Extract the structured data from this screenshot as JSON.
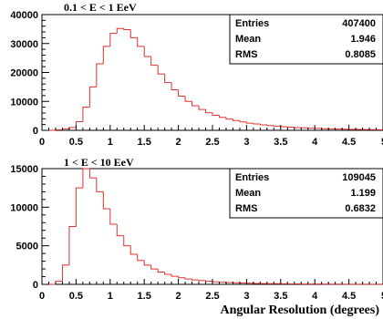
{
  "chart_data": [
    {
      "type": "histogram",
      "title": "0.1 < E < 1 EeV",
      "xlabel": "",
      "ylabel": "",
      "xlim": [
        0,
        5
      ],
      "ylim": [
        0,
        40000
      ],
      "bin_width": 0.1,
      "yticks": [
        "0",
        "10000",
        "20000",
        "30000",
        "40000"
      ],
      "xticks": [
        "0",
        "0.5",
        "1",
        "1.5",
        "2",
        "2.5",
        "3",
        "3.5",
        "4",
        "4.5",
        "5"
      ],
      "values": [
        0,
        0,
        200,
        500,
        1000,
        3000,
        8000,
        15000,
        23000,
        29000,
        33500,
        35200,
        34800,
        32000,
        29000,
        25500,
        22500,
        19500,
        16500,
        14000,
        11800,
        10000,
        8500,
        7200,
        6100,
        5200,
        4500,
        3900,
        3400,
        2900,
        2500,
        2200,
        1900,
        1650,
        1450,
        1250,
        1100,
        950,
        850,
        750,
        650,
        570,
        500,
        440,
        390,
        340,
        300,
        260,
        230,
        200
      ],
      "color": "#e03030",
      "stats": {
        "entries_label": "Entries",
        "entries": "407400",
        "mean_label": "Mean",
        "mean": "1.946",
        "rms_label": "RMS",
        "rms": "0.8085"
      }
    },
    {
      "type": "histogram",
      "title": "1 < E < 10 EeV",
      "xlabel": "Angular Resolution (degrees)",
      "ylabel": "",
      "xlim": [
        0,
        5
      ],
      "ylim": [
        0,
        15000
      ],
      "bin_width": 0.1,
      "yticks": [
        "0",
        "5000",
        "10000",
        "15000"
      ],
      "xticks": [
        "0",
        "0.5",
        "1",
        "1.5",
        "2",
        "2.5",
        "3",
        "3.5",
        "4",
        "4.5",
        "5"
      ],
      "values": [
        0,
        0,
        400,
        2500,
        7500,
        12500,
        15000,
        13800,
        12000,
        9800,
        7800,
        6300,
        5000,
        3900,
        3100,
        2500,
        2000,
        1600,
        1300,
        1050,
        850,
        700,
        580,
        480,
        400,
        330,
        280,
        240,
        200,
        170,
        145,
        125,
        110,
        95,
        82,
        72,
        63,
        55,
        48,
        42,
        37,
        32,
        28,
        25,
        22,
        19,
        17,
        15,
        13,
        11
      ],
      "color": "#e03030",
      "stats": {
        "entries_label": "Entries",
        "entries": "109045",
        "mean_label": "Mean",
        "mean": "1.199",
        "rms_label": "RMS",
        "rms": "0.6832"
      }
    }
  ]
}
